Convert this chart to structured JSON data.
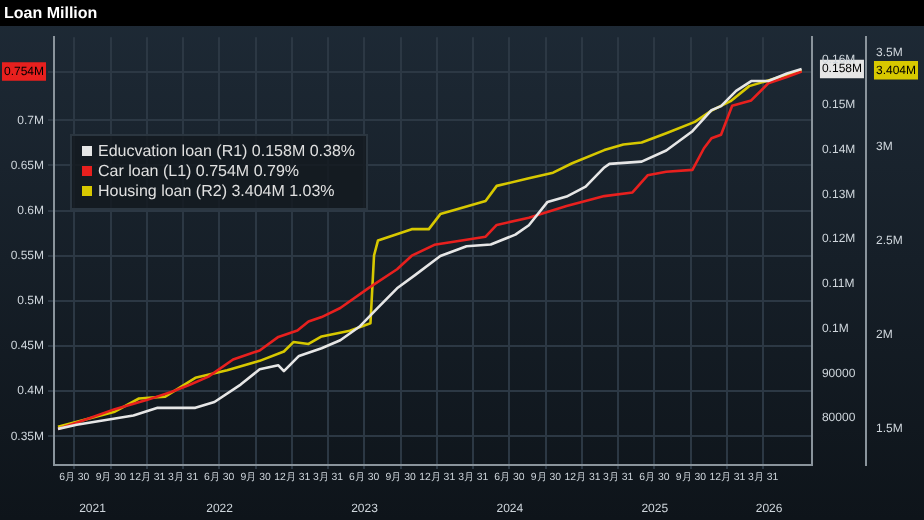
{
  "chart_data": {
    "type": "line",
    "title": "Loan Million",
    "legend": "top left",
    "grid": true,
    "marker": "none",
    "line_style": "solid",
    "xlim": [
      "2021-05-10",
      "2026-08-01"
    ],
    "xticks": [
      {
        "value": "2021-06-30",
        "label": "6月 30"
      },
      {
        "value": "2021-09-30",
        "label": "9月 30"
      },
      {
        "value": "2021-12-31",
        "label": "12月 31"
      },
      {
        "value": "2022-03-31",
        "label": "3月 31"
      },
      {
        "value": "2022-06-30",
        "label": "6月 30"
      },
      {
        "value": "2022-09-30",
        "label": "9月 30"
      },
      {
        "value": "2022-12-31",
        "label": "12月 31"
      },
      {
        "value": "2023-03-31",
        "label": "3月 31"
      },
      {
        "value": "2023-06-30",
        "label": "6月 30"
      },
      {
        "value": "2023-09-30",
        "label": "9月 30"
      },
      {
        "value": "2023-12-31",
        "label": "12月 31"
      },
      {
        "value": "2024-03-31",
        "label": "3月 31"
      },
      {
        "value": "2024-06-30",
        "label": "6月 30"
      },
      {
        "value": "2024-09-30",
        "label": "9月 30"
      },
      {
        "value": "2024-12-31",
        "label": "12月 31"
      },
      {
        "value": "2025-03-31",
        "label": "3月 31"
      },
      {
        "value": "2025-06-30",
        "label": "6月 30"
      },
      {
        "value": "2025-09-30",
        "label": "9月 30"
      },
      {
        "value": "2025-12-31",
        "label": "12月 31"
      },
      {
        "value": "2026-03-31",
        "label": "3月 31"
      }
    ],
    "x2lim": [
      "2021-05-10",
      "2026-08-01"
    ],
    "x2ticks": [
      {
        "value": "2021-08-15",
        "label": "2021"
      },
      {
        "value": "2022-07-01",
        "label": "2022"
      },
      {
        "value": "2023-07-01",
        "label": "2023"
      },
      {
        "value": "2024-07-01",
        "label": "2024"
      },
      {
        "value": "2025-07-01",
        "label": "2025"
      },
      {
        "value": "2026-04-15",
        "label": "2026"
      }
    ],
    "ylim": [
      318000,
      792000
    ],
    "yticks": [
      {
        "value": 350000,
        "label": "0.35M"
      },
      {
        "value": 400000,
        "label": "0.4M"
      },
      {
        "value": 450000,
        "label": "0.45M"
      },
      {
        "value": 500000,
        "label": "0.5M"
      },
      {
        "value": 550000,
        "label": "0.55M"
      },
      {
        "value": 600000,
        "label": "0.6M"
      },
      {
        "value": 650000,
        "label": "0.65M"
      },
      {
        "value": 700000,
        "label": "0.7M"
      },
      {
        "value": 754000,
        "label": "0.754M"
      }
    ],
    "y2lim": [
      69500,
      165100
    ],
    "y2ticks": [
      80000,
      90000,
      {
        "value": 100000,
        "label": "0.1M"
      },
      {
        "value": 110000,
        "label": "0.11M"
      },
      {
        "value": 120000,
        "label": "0.12M"
      },
      {
        "value": 130000,
        "label": "0.13M"
      },
      {
        "value": 140000,
        "label": "0.14M"
      },
      {
        "value": 150000,
        "label": "0.15M"
      },
      {
        "value": 158000,
        "label": "0.158M"
      },
      {
        "value": 160000,
        "label": "0.16M"
      }
    ],
    "y3lim": [
      1306000,
      3580000
    ],
    "y3ticks": [
      {
        "value": 1500000,
        "label": "1.5M"
      },
      {
        "value": 2000000,
        "label": "2M"
      },
      {
        "value": 2500000,
        "label": "2.5M"
      },
      {
        "value": 3000000,
        "label": "3M"
      },
      {
        "value": 3404000,
        "label": "3.404M"
      },
      {
        "value": 3500000,
        "label": "3.5M"
      }
    ],
    "series": [
      {
        "name": "Educvation loan (R1) 0.158M 0.38%",
        "color": "#e6e6e6",
        "axis": "y2",
        "x": [
          "2021-05-20",
          "2021-07-06",
          "2021-11-26",
          "2022-01-26",
          "2022-05-01",
          "2022-06-18",
          "2022-08-23",
          "2022-10-10",
          "2022-11-26",
          "2022-12-10",
          "2023-01-17",
          "2023-03-15",
          "2023-05-01",
          "2023-06-18",
          "2023-08-04",
          "2023-09-21",
          "2023-11-06",
          "2024-01-08",
          "2024-03-14",
          "2024-05-14",
          "2024-07-15",
          "2024-08-18",
          "2024-10-04",
          "2024-11-21",
          "2025-01-08",
          "2025-02-24",
          "2025-03-09",
          "2025-05-29",
          "2025-07-30",
          "2025-10-04",
          "2025-11-21",
          "2025-12-15",
          "2026-01-22",
          "2026-03-01",
          "2026-04-13",
          "2026-05-30",
          "2026-07-06"
        ],
        "values": [
          77600,
          78500,
          80600,
          82300,
          82300,
          83600,
          87500,
          90900,
          91800,
          90500,
          93900,
          95600,
          97400,
          100400,
          104700,
          109000,
          112000,
          116200,
          118400,
          118800,
          121000,
          123100,
          128300,
          129500,
          131700,
          136000,
          136800,
          137300,
          139800,
          144100,
          148800,
          149700,
          153100,
          155300,
          155300,
          157000,
          158000
        ]
      },
      {
        "name": "Car loan (L1) 0.754M 0.79%",
        "color": "#e8201e",
        "x": [
          "2021-05-20",
          "2021-07-06",
          "2021-10-10",
          "2021-12-29",
          "2022-03-01",
          "2022-04-17",
          "2022-06-03",
          "2022-08-04",
          "2022-10-10",
          "2022-11-26",
          "2023-01-13",
          "2023-02-10",
          "2023-03-15",
          "2023-05-01",
          "2023-07-11",
          "2023-09-21",
          "2023-10-28",
          "2023-12-24",
          "2024-05-01",
          "2024-05-29",
          "2024-08-18",
          "2024-11-21",
          "2025-02-24",
          "2025-05-06",
          "2025-06-13",
          "2025-07-30",
          "2025-10-04",
          "2025-11-02",
          "2025-11-21",
          "2025-12-15",
          "2026-01-12",
          "2026-03-01",
          "2026-04-13",
          "2026-05-30",
          "2026-07-06"
        ],
        "values": [
          358000,
          365000,
          380000,
          390000,
          399000,
          407000,
          416000,
          435000,
          445000,
          460000,
          467000,
          477000,
          482000,
          492000,
          514000,
          535000,
          550000,
          562000,
          571000,
          584000,
          592000,
          605000,
          616000,
          620000,
          639000,
          643000,
          645000,
          669000,
          680000,
          684000,
          716000,
          722000,
          741000,
          748000,
          754000
        ]
      },
      {
        "name": "Housing loan (R2) 3.404M 1.03%",
        "color": "#d7c800",
        "axis": "y3",
        "x": [
          "2021-05-20",
          "2021-10-10",
          "2021-12-10",
          "2022-02-14",
          "2022-05-01",
          "2022-07-20",
          "2022-10-10",
          "2022-12-10",
          "2023-01-03",
          "2023-02-10",
          "2023-03-15",
          "2023-05-25",
          "2023-07-16",
          "2023-07-25",
          "2023-08-04",
          "2023-10-28",
          "2023-12-10",
          "2024-01-08",
          "2024-03-14",
          "2024-05-01",
          "2024-05-29",
          "2024-08-18",
          "2024-10-18",
          "2024-12-05",
          "2025-02-24",
          "2025-04-13",
          "2025-05-29",
          "2025-07-30",
          "2025-10-10",
          "2025-11-21",
          "2026-01-08",
          "2026-02-24",
          "2026-04-13",
          "2026-07-06"
        ],
        "values": [
          1510000,
          1590000,
          1660000,
          1670000,
          1770000,
          1810000,
          1860000,
          1910000,
          1960000,
          1950000,
          1990000,
          2020000,
          2060000,
          2420000,
          2500000,
          2560000,
          2560000,
          2640000,
          2680000,
          2710000,
          2790000,
          2830000,
          2860000,
          2910000,
          2980000,
          3010000,
          3020000,
          3070000,
          3130000,
          3190000,
          3240000,
          3320000,
          3350000,
          3404000
        ]
      }
    ]
  }
}
